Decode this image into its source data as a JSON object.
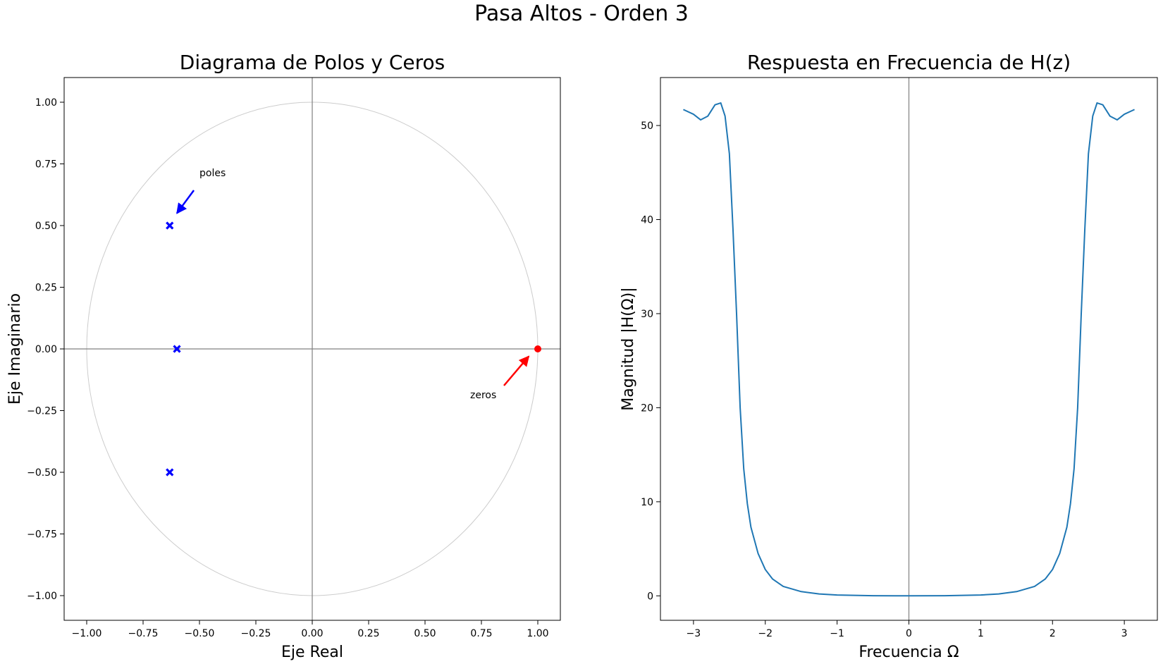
{
  "figure": {
    "suptitle": "Pasa Altos - Orden 3"
  },
  "chart_data": [
    {
      "type": "scatter",
      "title": "Diagrama de Polos y Ceros",
      "xlabel": "Eje Real",
      "ylabel": "Eje Imaginario",
      "xlim": [
        -1.1,
        1.1
      ],
      "ylim": [
        -1.1,
        1.1
      ],
      "xticks": [
        -1.0,
        -0.75,
        -0.5,
        -0.25,
        0.0,
        0.25,
        0.5,
        0.75,
        1.0
      ],
      "xtick_labels": [
        "−1.00",
        "−0.75",
        "−0.50",
        "−0.25",
        "0.00",
        "0.25",
        "0.50",
        "0.75",
        "1.00"
      ],
      "yticks": [
        -1.0,
        -0.75,
        -0.5,
        -0.25,
        0.0,
        0.25,
        0.5,
        0.75,
        1.0
      ],
      "ytick_labels": [
        "−1.00",
        "−0.75",
        "−0.50",
        "−0.25",
        "0.00",
        "0.25",
        "0.50",
        "0.75",
        "1.00"
      ],
      "unit_circle": true,
      "grid": false,
      "series": [
        {
          "marker": "x",
          "color": "#0000ff",
          "points": [
            [
              -0.632,
              0.5
            ],
            [
              -0.6,
              0.0
            ],
            [
              -0.632,
              -0.5
            ]
          ]
        },
        {
          "marker": "o",
          "color": "#ff0000",
          "points": [
            [
              1.0,
              0.0
            ]
          ]
        }
      ],
      "annotations": [
        {
          "text": "poles",
          "color": "#0000ff",
          "text_at": [
            -0.5,
            0.7
          ],
          "arrow_tip": [
            -0.6,
            0.55
          ]
        },
        {
          "text": "zeros",
          "color": "#ff0000",
          "text_at": [
            0.7,
            -0.2
          ],
          "arrow_tip": [
            0.96,
            -0.03
          ]
        }
      ]
    },
    {
      "type": "line",
      "title": "Respuesta en Frecuencia de H(z)",
      "xlabel": "Frecuencia Ω",
      "ylabel": "Magnitud |H(Ω)|",
      "xlim": [
        -3.46,
        3.46
      ],
      "ylim": [
        -2.6,
        55.1
      ],
      "xticks": [
        -3,
        -2,
        -1,
        0,
        1,
        2,
        3
      ],
      "xtick_labels": [
        "−3",
        "−2",
        "−1",
        "0",
        "1",
        "2",
        "3"
      ],
      "yticks": [
        0,
        10,
        20,
        30,
        40,
        50
      ],
      "ytick_labels": [
        "0",
        "10",
        "20",
        "30",
        "40",
        "50"
      ],
      "grid": false,
      "line_color": "#1f77b4",
      "x": [
        -3.14159,
        -3.0,
        -2.9,
        -2.8,
        -2.7,
        -2.62,
        -2.56,
        -2.5,
        -2.45,
        -2.4,
        -2.35,
        -2.3,
        -2.25,
        -2.2,
        -2.1,
        -2.0,
        -1.9,
        -1.75,
        -1.5,
        -1.25,
        -1.0,
        -0.5,
        0.0,
        0.5,
        1.0,
        1.25,
        1.5,
        1.75,
        1.9,
        2.0,
        2.1,
        2.2,
        2.25,
        2.3,
        2.35,
        2.4,
        2.45,
        2.5,
        2.56,
        2.62,
        2.7,
        2.8,
        2.9,
        3.0,
        3.14159
      ],
      "y": [
        51.7,
        51.2,
        50.6,
        51.0,
        52.2,
        52.4,
        51.0,
        47.0,
        39.0,
        30.0,
        20.0,
        13.5,
        9.8,
        7.3,
        4.5,
        2.8,
        1.8,
        1.0,
        0.45,
        0.2,
        0.09,
        0.01,
        0.0,
        0.01,
        0.09,
        0.2,
        0.45,
        1.0,
        1.8,
        2.8,
        4.5,
        7.3,
        9.8,
        13.5,
        20.0,
        30.0,
        39.0,
        47.0,
        51.0,
        52.4,
        52.2,
        51.0,
        50.6,
        51.2,
        51.7
      ]
    }
  ]
}
